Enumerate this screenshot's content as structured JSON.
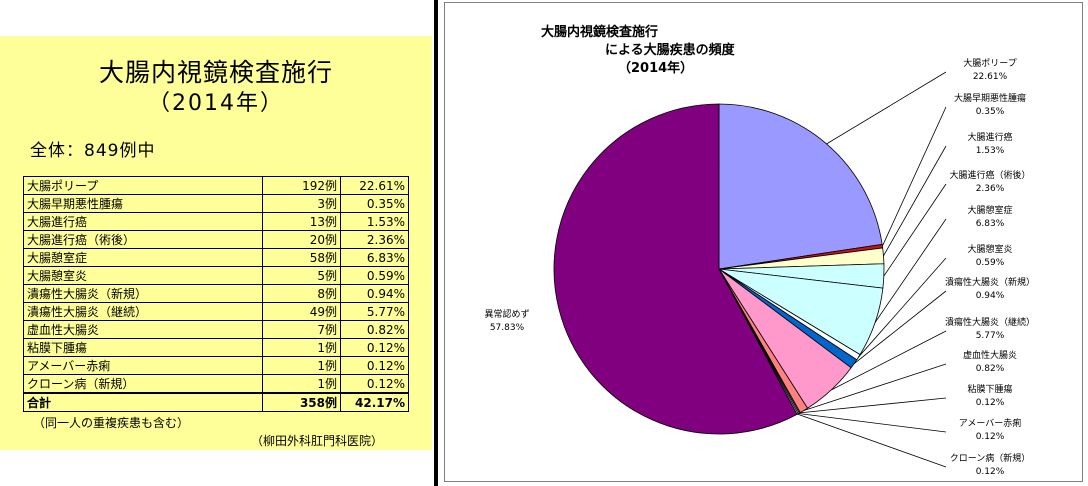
{
  "left": {
    "title": "大腸内視鏡検査施行",
    "subtitle": "（2014年）",
    "total_label": "全体：849例中",
    "table": [
      {
        "name": "大腸ポリープ",
        "count": "192例",
        "pct": "22.61%"
      },
      {
        "name": "大腸早期悪性腫瘍",
        "count": "3例",
        "pct": "0.35%"
      },
      {
        "name": "大腸進行癌",
        "count": "13例",
        "pct": "1.53%"
      },
      {
        "name": "大腸進行癌（術後）",
        "count": "20例",
        "pct": "2.36%"
      },
      {
        "name": "大腸憩室症",
        "count": "58例",
        "pct": "6.83%"
      },
      {
        "name": "大腸憩室炎",
        "count": "5例",
        "pct": "0.59%"
      },
      {
        "name": "潰瘍性大腸炎（新規）",
        "count": "8例",
        "pct": "0.94%"
      },
      {
        "name": "潰瘍性大腸炎（継続）",
        "count": "49例",
        "pct": "5.77%"
      },
      {
        "name": "虚血性大腸炎",
        "count": "7例",
        "pct": "0.82%"
      },
      {
        "name": "粘膜下腫瘍",
        "count": "1例",
        "pct": "0.12%"
      },
      {
        "name": "アメーバー赤痢",
        "count": "1例",
        "pct": "0.12%"
      },
      {
        "name": "クローン病（新規）",
        "count": "1例",
        "pct": "0.12%"
      }
    ],
    "total_row": {
      "name": "合計",
      "count": "358例",
      "pct": "42.17%"
    },
    "note": "（同一人の重複疾患も含む）",
    "credit": "（柳田外科肛門科医院）"
  },
  "chart_data": {
    "type": "pie",
    "title_lines": [
      "大腸内視鏡検査施行",
      "による大腸疾患の頻度",
      "（2014年）"
    ],
    "unit": "%",
    "slices": [
      {
        "name": "大腸ポリープ",
        "value": 22.61,
        "label": "22.61%",
        "color": "#9999ff"
      },
      {
        "name": "大腸早期悪性腫瘍",
        "value": 0.35,
        "label": "0.35%",
        "color": "#cc1111"
      },
      {
        "name": "大腸進行癌",
        "value": 1.53,
        "label": "1.53%",
        "color": "#ffffcc"
      },
      {
        "name": "大腸進行癌（術後）",
        "value": 2.36,
        "label": "2.36%",
        "color": "#ffffff"
      },
      {
        "name": "大腸憩室症",
        "value": 6.83,
        "label": "6.83%",
        "color": "#ccffff"
      },
      {
        "name": "大腸憩室炎",
        "value": 0.59,
        "label": "0.59%",
        "color": "#ffffff"
      },
      {
        "name": "潰瘍性大腸炎（新規）",
        "value": 0.94,
        "label": "0.94%",
        "color": "#ffffff"
      },
      {
        "name": "潰瘍性大腸炎（継続）",
        "value": 5.77,
        "label": "5.77%",
        "color": "#ff99cc"
      },
      {
        "name": "虚血性大腸炎",
        "value": 0.82,
        "label": "0.82%",
        "color": "#ff8080"
      },
      {
        "name": "粘膜下腫瘍",
        "value": 0.12,
        "label": "0.12%",
        "color": "#ffffff"
      },
      {
        "name": "アメーバー赤痢",
        "value": 0.12,
        "label": "0.12%",
        "color": "#ffffff"
      },
      {
        "name": "クローン病（新規）",
        "value": 0.12,
        "label": "0.12%",
        "color": "#ffffff"
      },
      {
        "name": "異常認めず",
        "value": 57.83,
        "label": "57.83%",
        "color": "#800080"
      }
    ],
    "note": "slice colours approximate the original; two small slices appear blue and grey",
    "extra_colors": {
      "blue_slice": "#0066cc",
      "grey_slice": "#808080",
      "lavender_slice": "#ccccff"
    }
  }
}
